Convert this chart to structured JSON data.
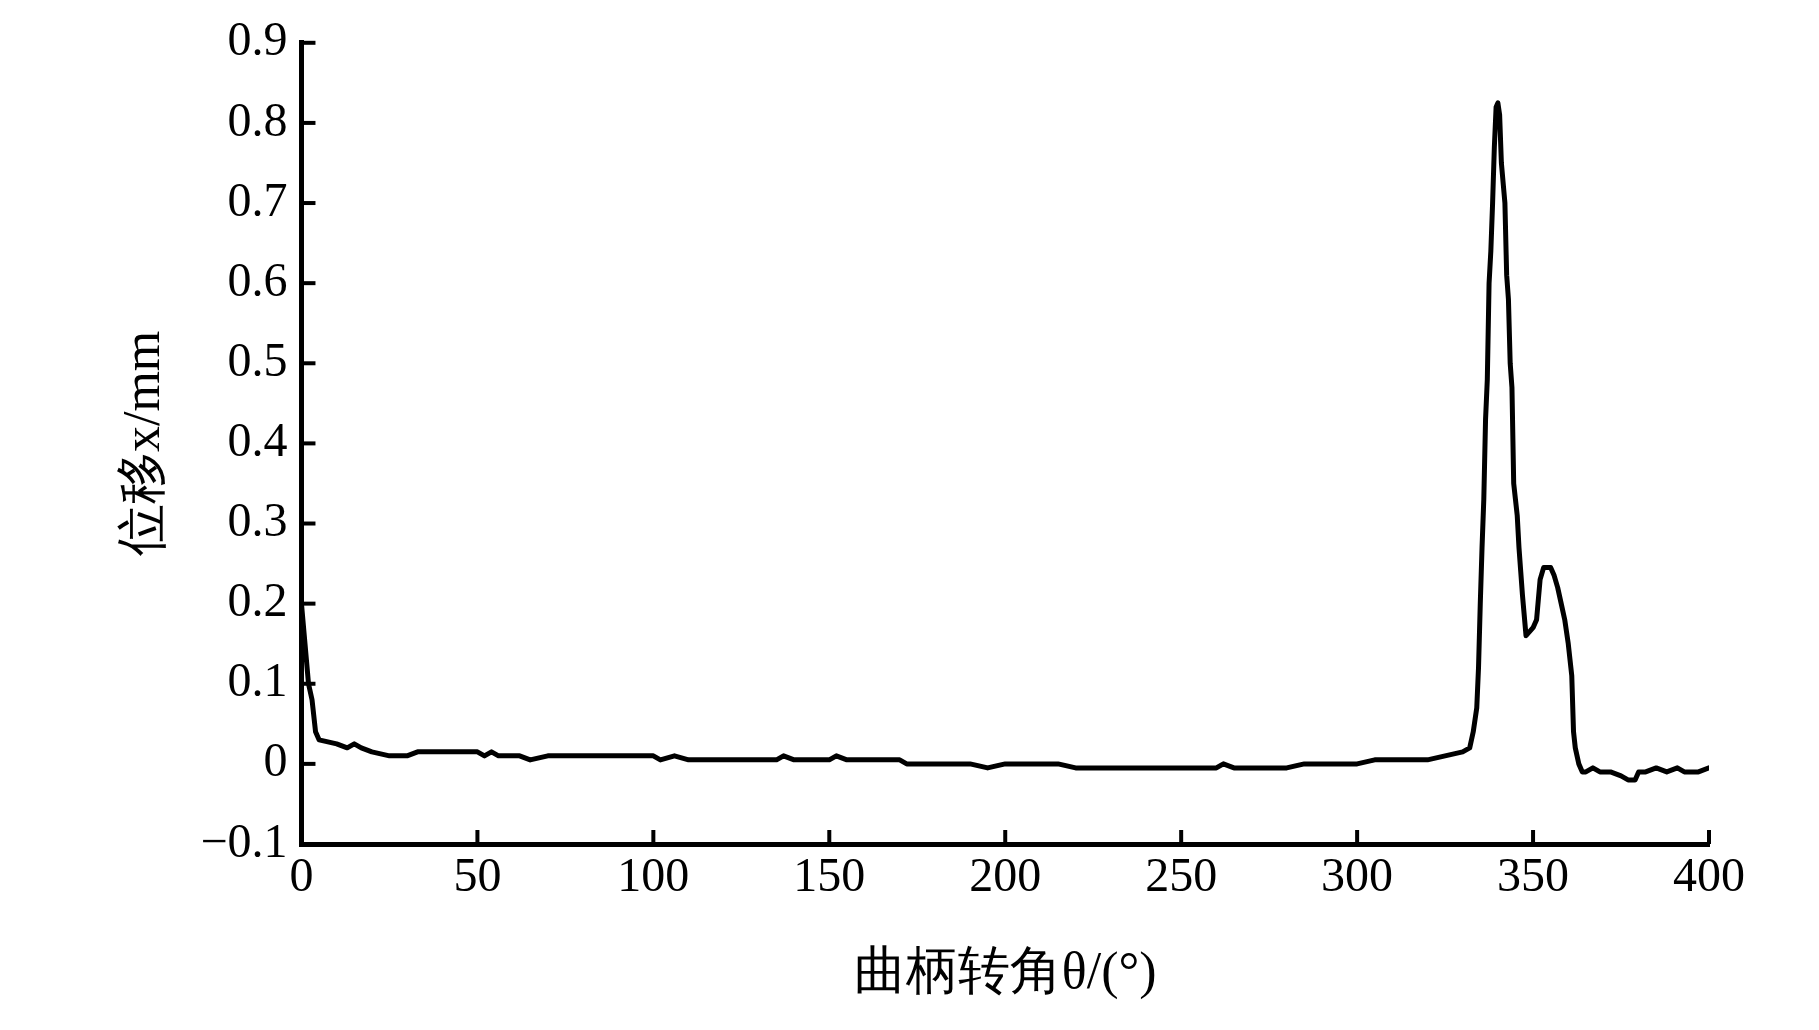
{
  "chart_data": {
    "type": "line",
    "xlabel": "曲柄转角θ/(°)",
    "ylabel": "位移x/mm",
    "xlim": [
      0,
      400
    ],
    "xticks": [
      0,
      50,
      100,
      150,
      200,
      250,
      300,
      350,
      400
    ],
    "ylim": [
      -0.1,
      0.9
    ],
    "yticks": [
      {
        "value": -0.1,
        "label": "−0.1"
      },
      0,
      0.1,
      0.2,
      0.3,
      0.4,
      0.5,
      0.6,
      0.7,
      0.8,
      0.9
    ],
    "grid": false,
    "legend": false,
    "marker": "none",
    "line_style": "solid",
    "series": [
      {
        "color": "#000000",
        "x": [
          0,
          1,
          2,
          3,
          4,
          5,
          10,
          13,
          15,
          17,
          20,
          25,
          30,
          33,
          50,
          52,
          54,
          56,
          62,
          65,
          70,
          100,
          102,
          106,
          110,
          135,
          137,
          140,
          150,
          152,
          155,
          170,
          172,
          180,
          190,
          195,
          200,
          215,
          220,
          260,
          262,
          265,
          280,
          285,
          300,
          305,
          320,
          325,
          330,
          332,
          333,
          334,
          334.5,
          335,
          335.5,
          336,
          336.5,
          337,
          337.5,
          338,
          338.5,
          339,
          339.5,
          340,
          340.5,
          341,
          342,
          342.5,
          343,
          343.5,
          344,
          344.5,
          345,
          345.5,
          346,
          346.5,
          347,
          348,
          350,
          351,
          352,
          353,
          354,
          355,
          356,
          357,
          358,
          359,
          360,
          361,
          361.5,
          362,
          363,
          364,
          365,
          367,
          369,
          372,
          375,
          377,
          379,
          380,
          382,
          385,
          388,
          391,
          393,
          397,
          400
        ],
        "values": [
          0.2,
          0.15,
          0.1,
          0.08,
          0.04,
          0.03,
          0.025,
          0.02,
          0.025,
          0.02,
          0.015,
          0.01,
          0.01,
          0.015,
          0.015,
          0.01,
          0.015,
          0.01,
          0.01,
          0.005,
          0.01,
          0.01,
          0.005,
          0.01,
          0.005,
          0.005,
          0.01,
          0.005,
          0.005,
          0.01,
          0.005,
          0.005,
          0,
          0,
          0,
          -0.005,
          0,
          0,
          -0.005,
          -0.005,
          0,
          -0.005,
          -0.005,
          0,
          0,
          0.005,
          0.005,
          0.01,
          0.015,
          0.02,
          0.04,
          0.07,
          0.12,
          0.2,
          0.27,
          0.33,
          0.43,
          0.48,
          0.6,
          0.64,
          0.7,
          0.77,
          0.82,
          0.825,
          0.81,
          0.75,
          0.7,
          0.61,
          0.58,
          0.5,
          0.47,
          0.35,
          0.33,
          0.31,
          0.27,
          0.24,
          0.21,
          0.16,
          0.17,
          0.18,
          0.23,
          0.245,
          0.245,
          0.245,
          0.235,
          0.22,
          0.2,
          0.18,
          0.15,
          0.11,
          0.04,
          0.02,
          0,
          -0.01,
          -0.01,
          -0.005,
          -0.01,
          -0.01,
          -0.015,
          -0.02,
          -0.02,
          -0.01,
          -0.01,
          -0.005,
          -0.01,
          -0.005,
          -0.01,
          -0.01,
          -0.005
        ]
      }
    ]
  }
}
